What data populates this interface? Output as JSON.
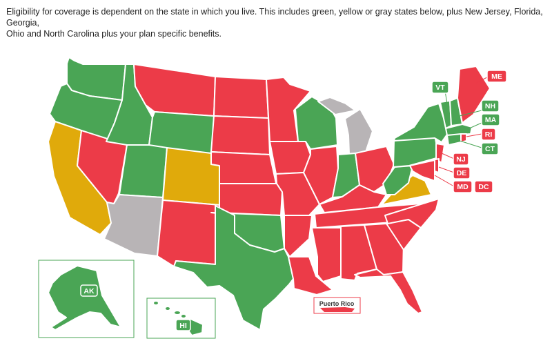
{
  "caption_line1": "Eligibility for coverage is dependent on the state in which you live.  This includes green, yellow or gray states below, plus New Jersey, Florida, Georgia,",
  "caption_line2": "Ohio and North Carolina plus your plan specific benefits.",
  "colors": {
    "green": "#4aa555",
    "red": "#ec3b48",
    "yellow": "#e0aa0b",
    "gray": "#b8b4b6",
    "border": "#ffffff"
  },
  "labels": {
    "VT": "VT",
    "ME": "ME",
    "NH": "NH",
    "MA": "MA",
    "RI": "RI",
    "CT": "CT",
    "NJ": "NJ",
    "DE": "DE",
    "MD": "MD",
    "DC": "DC",
    "AK": "AK",
    "HI": "HI",
    "puerto_rico": "Puerto Rico"
  }
}
